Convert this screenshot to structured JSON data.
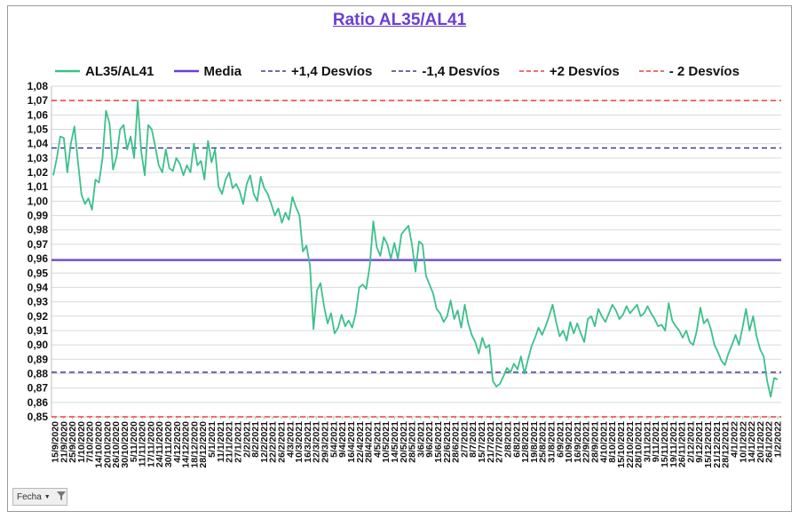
{
  "chart_data": {
    "type": "line",
    "title": "Ratio AL35/AL41",
    "xlabel": "",
    "ylabel": "",
    "ylim": [
      0.85,
      1.08
    ],
    "yticks": [
      "1,08",
      "1,07",
      "1,06",
      "1,05",
      "1,04",
      "1,03",
      "1,02",
      "1,01",
      "1,00",
      "0,99",
      "0,98",
      "0,97",
      "0,96",
      "0,95",
      "0,94",
      "0,93",
      "0,92",
      "0,91",
      "0,90",
      "0,89",
      "0,88",
      "0,87",
      "0,86",
      "0,85"
    ],
    "grid": true,
    "legend_position": "top",
    "xtick_labels": [
      "15/9/2020",
      "21/9/2020",
      "25/9/2020",
      "1/10/2020",
      "7/10/2020",
      "14/10/2020",
      "20/10/2020",
      "26/10/2020",
      "30/10/2020",
      "5/11/2020",
      "11/11/2020",
      "17/11/2020",
      "24/11/2020",
      "30/11/2020",
      "4/12/2020",
      "14/12/2020",
      "18/12/2020",
      "28/12/2020",
      "5/1/2021",
      "11/1/2021",
      "21/1/2021",
      "27/1/2021",
      "2/2/2021",
      "8/2/2021",
      "12/2/2021",
      "22/2/2021",
      "26/2/2021",
      "4/3/2021",
      "10/3/2021",
      "16/3/2021",
      "22/3/2021",
      "29/3/2021",
      "5/4/2021",
      "9/4/2021",
      "16/4/2021",
      "22/4/2021",
      "28/4/2021",
      "4/5/2021",
      "10/5/2021",
      "14/5/2021",
      "20/5/2021",
      "28/5/2021",
      "3/6/2021",
      "9/6/2021",
      "15/6/2021",
      "22/6/2021",
      "28/6/2021",
      "2/7/2021",
      "8/7/2021",
      "15/7/2021",
      "21/7/2021",
      "27/7/2021",
      "2/8/2021",
      "6/8/2021",
      "12/8/2021",
      "19/8/2021",
      "25/8/2021",
      "31/8/2021",
      "6/9/2021",
      "10/9/2021",
      "16/9/2021",
      "22/9/2021",
      "28/9/2021",
      "4/10/2021",
      "8/10/2021",
      "15/10/2021",
      "22/10/2021",
      "28/10/2021",
      "3/11/2021",
      "9/11/2021",
      "15/11/2021",
      "19/11/2021",
      "26/11/2021",
      "2/12/2021",
      "9/12/2021",
      "15/12/2021",
      "21/12/2021",
      "28/12/2021",
      "4/1/2022",
      "10/1/2022",
      "14/1/2022",
      "20/1/2022",
      "26/1/2022",
      "1/2/2022"
    ],
    "series": [
      {
        "name": "AL35/AL41",
        "color": "#3cc08b",
        "style": "solid",
        "values": [
          1.018,
          1.03,
          1.045,
          1.044,
          1.02,
          1.04,
          1.052,
          1.028,
          1.005,
          0.998,
          1.002,
          0.994,
          1.015,
          1.013,
          1.03,
          1.063,
          1.054,
          1.022,
          1.031,
          1.05,
          1.053,
          1.036,
          1.045,
          1.03,
          1.07,
          1.035,
          1.018,
          1.053,
          1.05,
          1.038,
          1.025,
          1.02,
          1.036,
          1.023,
          1.021,
          1.03,
          1.026,
          1.018,
          1.025,
          1.02,
          1.04,
          1.025,
          1.028,
          1.015,
          1.042,
          1.027,
          1.036,
          1.01,
          1.005,
          1.015,
          1.02,
          1.009,
          1.012,
          1.007,
          0.998,
          1.012,
          1.018,
          1.005,
          1.0,
          1.017,
          1.009,
          1.005,
          0.998,
          0.99,
          0.995,
          0.985,
          0.992,
          0.987,
          1.003,
          0.996,
          0.99,
          0.965,
          0.969,
          0.955,
          0.911,
          0.938,
          0.943,
          0.927,
          0.915,
          0.922,
          0.908,
          0.912,
          0.921,
          0.913,
          0.917,
          0.912,
          0.922,
          0.94,
          0.942,
          0.939,
          0.955,
          0.986,
          0.968,
          0.962,
          0.975,
          0.97,
          0.96,
          0.971,
          0.96,
          0.977,
          0.98,
          0.983,
          0.97,
          0.951,
          0.972,
          0.97,
          0.948,
          0.942,
          0.936,
          0.925,
          0.922,
          0.916,
          0.92,
          0.931,
          0.918,
          0.924,
          0.912,
          0.928,
          0.915,
          0.907,
          0.902,
          0.894,
          0.905,
          0.898,
          0.9,
          0.875,
          0.871,
          0.873,
          0.878,
          0.884,
          0.881,
          0.887,
          0.883,
          0.892,
          0.88,
          0.89,
          0.899,
          0.905,
          0.912,
          0.907,
          0.913,
          0.92,
          0.928,
          0.916,
          0.906,
          0.91,
          0.903,
          0.916,
          0.908,
          0.915,
          0.908,
          0.902,
          0.918,
          0.92,
          0.913,
          0.925,
          0.92,
          0.916,
          0.922,
          0.928,
          0.924,
          0.918,
          0.921,
          0.927,
          0.922,
          0.925,
          0.928,
          0.92,
          0.922,
          0.927,
          0.922,
          0.918,
          0.913,
          0.914,
          0.91,
          0.929,
          0.917,
          0.913,
          0.91,
          0.905,
          0.91,
          0.902,
          0.9,
          0.91,
          0.926,
          0.915,
          0.918,
          0.911,
          0.9,
          0.895,
          0.889,
          0.886,
          0.894,
          0.9,
          0.907,
          0.9,
          0.912,
          0.925,
          0.91,
          0.92,
          0.906,
          0.897,
          0.892,
          0.875,
          0.864,
          0.877,
          0.876
        ]
      },
      {
        "name": "Media",
        "color": "#6a3fd2",
        "style": "solid",
        "value": 0.959
      },
      {
        "name": "+1,4 Desvíos",
        "color": "#3b3b8f",
        "style": "dashed",
        "value": 1.037
      },
      {
        "name": "-1,4 Desvíos",
        "color": "#3b3b8f",
        "style": "dashed",
        "value": 0.881
      },
      {
        "name": "+2 Desvíos",
        "color": "#e8413c",
        "style": "dashed",
        "value": 1.07
      },
      {
        "name": "- 2 Desvíos",
        "color": "#e8413c",
        "style": "dashed",
        "value": 0.85
      }
    ]
  },
  "filter_button": {
    "label": "Fecha",
    "dropdown_icon": "chevron-down-icon",
    "filter_icon": "funnel-icon"
  }
}
